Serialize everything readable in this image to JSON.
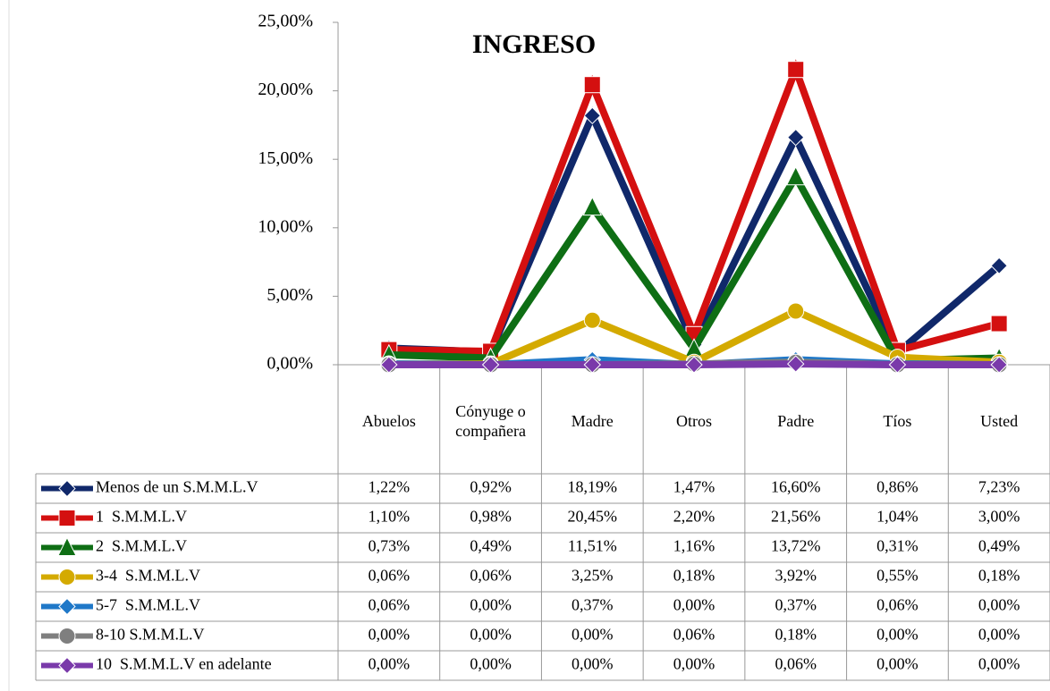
{
  "chart_data": {
    "type": "line",
    "title": "INGRESO",
    "categories": [
      "Abuelos",
      "Cónyuge o compañera",
      "Madre",
      "Otros",
      "Padre",
      "Tíos",
      "Usted"
    ],
    "ylim": [
      0,
      25
    ],
    "yticks": [
      {
        "value": 0,
        "label": "0,00%"
      },
      {
        "value": 5,
        "label": "5,00%"
      },
      {
        "value": 10,
        "label": "10,00%"
      },
      {
        "value": 15,
        "label": "15,00%"
      },
      {
        "value": 20,
        "label": "20,00%"
      },
      {
        "value": 25,
        "label": "25,00%"
      }
    ],
    "series": [
      {
        "name": "Menos de un S.M.M.L.V",
        "color": "#10286a",
        "marker": "diamond",
        "values": [
          1.22,
          0.92,
          18.19,
          1.47,
          16.6,
          0.86,
          7.23
        ],
        "value_labels": [
          "1,22%",
          "0,92%",
          "18,19%",
          "1,47%",
          "16,60%",
          "0,86%",
          "7,23%"
        ]
      },
      {
        "name": "1  S.M.M.L.V",
        "color": "#d41010",
        "marker": "square",
        "values": [
          1.1,
          0.98,
          20.45,
          2.2,
          21.56,
          1.04,
          3.0
        ],
        "value_labels": [
          "1,10%",
          "0,98%",
          "20,45%",
          "2,20%",
          "21,56%",
          "1,04%",
          "3,00%"
        ]
      },
      {
        "name": "2  S.M.M.L.V",
        "color": "#0e6e14",
        "marker": "triangle",
        "values": [
          0.73,
          0.49,
          11.51,
          1.16,
          13.72,
          0.31,
          0.49
        ],
        "value_labels": [
          "0,73%",
          "0,49%",
          "11,51%",
          "1,16%",
          "13,72%",
          "0,31%",
          "0,49%"
        ]
      },
      {
        "name": "3-4  S.M.M.L.V",
        "color": "#d4aa00",
        "marker": "circle",
        "values": [
          0.06,
          0.06,
          3.25,
          0.18,
          3.92,
          0.55,
          0.18
        ],
        "value_labels": [
          "0,06%",
          "0,06%",
          "3,25%",
          "0,18%",
          "3,92%",
          "0,55%",
          "0,18%"
        ]
      },
      {
        "name": "5-7  S.M.M.L.V",
        "color": "#1f78c8",
        "marker": "diamond",
        "values": [
          0.06,
          0.0,
          0.37,
          0.0,
          0.37,
          0.06,
          0.0
        ],
        "value_labels": [
          "0,06%",
          "0,00%",
          "0,37%",
          "0,00%",
          "0,37%",
          "0,06%",
          "0,00%"
        ]
      },
      {
        "name": "8-10 S.M.M.L.V",
        "color": "#7f7f7f",
        "marker": "circle",
        "values": [
          0.0,
          0.0,
          0.0,
          0.06,
          0.18,
          0.0,
          0.0
        ],
        "value_labels": [
          "0,00%",
          "0,00%",
          "0,00%",
          "0,06%",
          "0,18%",
          "0,00%",
          "0,00%"
        ]
      },
      {
        "name": "10  S.M.M.L.V en adelante",
        "color": "#7a3aaa",
        "marker": "diamond",
        "values": [
          0.0,
          0.0,
          0.0,
          0.0,
          0.06,
          0.0,
          0.0
        ],
        "value_labels": [
          "0,00%",
          "0,00%",
          "0,00%",
          "0,00%",
          "0,06%",
          "0,00%",
          "0,00%"
        ]
      }
    ]
  }
}
